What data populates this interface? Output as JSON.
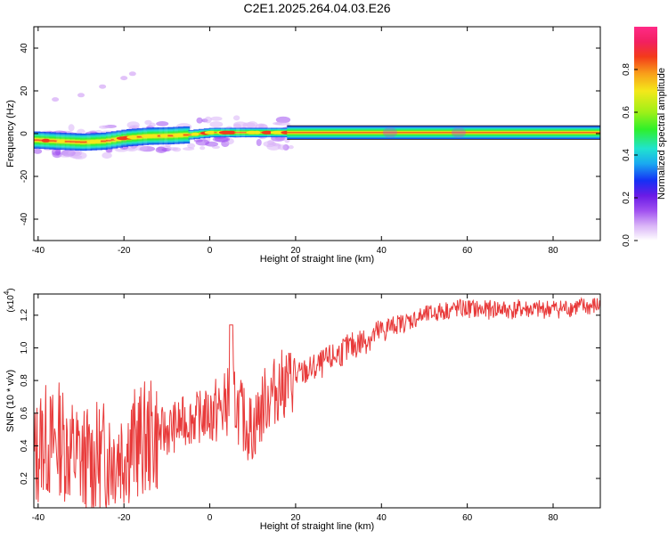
{
  "title": "C2E1.2025.264.04.03.E26",
  "chart_data": [
    {
      "type": "heatmap",
      "xlabel": "Height of straight line (km)",
      "ylabel": "Frequency (Hz)",
      "xlim": [
        -41,
        91
      ],
      "ylim": [
        -50,
        50
      ],
      "xticks": [
        -40,
        -20,
        0,
        20,
        40,
        60,
        80
      ],
      "yticks": [
        -40,
        -20,
        0,
        20,
        40
      ],
      "colorbar": {
        "label": "Normalized spectral amplitude",
        "range": [
          0,
          1
        ],
        "ticks": [
          "0.0",
          "0.2",
          "0.4",
          "0.6",
          "0.8"
        ],
        "colors": [
          "#ffffff",
          "#d9b3f7",
          "#a050f0",
          "#6a1be6",
          "#1530f5",
          "#1aa9f0",
          "#20e3cf",
          "#2ff02a",
          "#9ef018",
          "#f4e81a",
          "#f8a01a",
          "#f33a1a",
          "#f22060",
          "#ff2a86"
        ]
      },
      "ridge": [
        {
          "x": -41,
          "y": -3.0
        },
        {
          "x": -36,
          "y": -3.5
        },
        {
          "x": -30,
          "y": -4.0
        },
        {
          "x": -25,
          "y": -3.5
        },
        {
          "x": -20,
          "y": -2.0
        },
        {
          "x": -15,
          "y": -1.2
        },
        {
          "x": -10,
          "y": -1.0
        },
        {
          "x": -5,
          "y": -0.5
        },
        {
          "x": 0,
          "y": 0.5
        },
        {
          "x": 10,
          "y": 0.5
        },
        {
          "x": 18,
          "y": 0.5
        },
        {
          "x": 91,
          "y": 0.5
        }
      ],
      "faint_line": [
        {
          "x": -36,
          "y": 16
        },
        {
          "x": -30,
          "y": 18
        },
        {
          "x": -25,
          "y": 22
        },
        {
          "x": -20,
          "y": 26
        },
        {
          "x": -18,
          "y": 28
        }
      ]
    },
    {
      "type": "line",
      "xlabel": "Height of straight line (km)",
      "ylabel": "SNR (10 * v/v)",
      "yexponent_label": "(x10",
      "yexponent_power": "4",
      "yexponent_close": ")",
      "xlim": [
        -41,
        91
      ],
      "ylim": [
        0.02,
        1.33
      ],
      "xticks": [
        -40,
        -20,
        0,
        20,
        40,
        60,
        80
      ],
      "yticks": [
        "0.2",
        "0.4",
        "0.6",
        "0.8",
        "1.0",
        "1.2"
      ],
      "color": "#e83a3a",
      "series": [
        {
          "x": -41,
          "y": 0.3
        },
        {
          "x": -39,
          "y": 0.45
        },
        {
          "x": -37,
          "y": 0.4
        },
        {
          "x": -35,
          "y": 0.45
        },
        {
          "x": -32,
          "y": 0.35
        },
        {
          "x": -29,
          "y": 0.3
        },
        {
          "x": -26,
          "y": 0.32
        },
        {
          "x": -23,
          "y": 0.35
        },
        {
          "x": -20,
          "y": 0.38
        },
        {
          "x": -17,
          "y": 0.42
        },
        {
          "x": -14,
          "y": 0.45
        },
        {
          "x": -11,
          "y": 0.48
        },
        {
          "x": -8,
          "y": 0.52
        },
        {
          "x": -5,
          "y": 0.56
        },
        {
          "x": -2,
          "y": 0.58
        },
        {
          "x": 0,
          "y": 0.6
        },
        {
          "x": 3,
          "y": 0.62
        },
        {
          "x": 5,
          "y": 0.72
        },
        {
          "x": 8,
          "y": 0.55
        },
        {
          "x": 10,
          "y": 0.5
        },
        {
          "x": 13,
          "y": 0.68
        },
        {
          "x": 16,
          "y": 0.76
        },
        {
          "x": 19,
          "y": 0.8
        },
        {
          "x": 22,
          "y": 0.85
        },
        {
          "x": 25,
          "y": 0.88
        },
        {
          "x": 28,
          "y": 0.93
        },
        {
          "x": 31,
          "y": 0.98
        },
        {
          "x": 34,
          "y": 1.02
        },
        {
          "x": 37,
          "y": 1.06
        },
        {
          "x": 40,
          "y": 1.1
        },
        {
          "x": 43,
          "y": 1.14
        },
        {
          "x": 46,
          "y": 1.16
        },
        {
          "x": 49,
          "y": 1.19
        },
        {
          "x": 52,
          "y": 1.21
        },
        {
          "x": 55,
          "y": 1.23
        },
        {
          "x": 58,
          "y": 1.24
        },
        {
          "x": 61,
          "y": 1.24
        },
        {
          "x": 64,
          "y": 1.23
        },
        {
          "x": 67,
          "y": 1.24
        },
        {
          "x": 70,
          "y": 1.23
        },
        {
          "x": 73,
          "y": 1.24
        },
        {
          "x": 76,
          "y": 1.23
        },
        {
          "x": 79,
          "y": 1.24
        },
        {
          "x": 82,
          "y": 1.24
        },
        {
          "x": 85,
          "y": 1.25
        },
        {
          "x": 88,
          "y": 1.25
        },
        {
          "x": 91,
          "y": 1.26
        }
      ]
    }
  ]
}
